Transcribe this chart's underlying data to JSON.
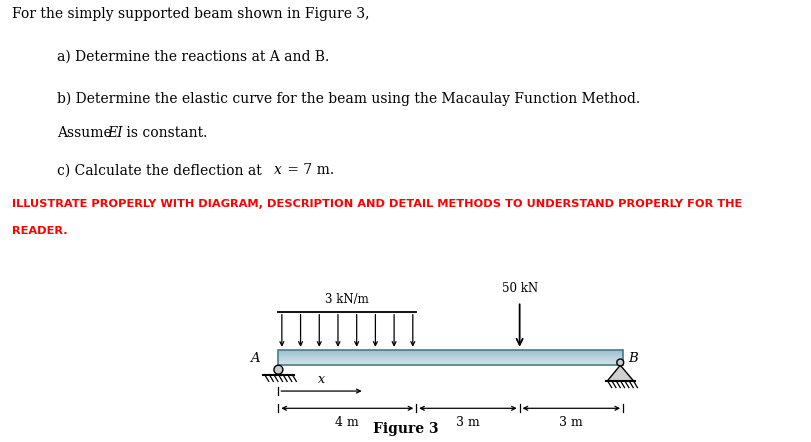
{
  "title_text": "For the simply supported beam shown in Figure 3,",
  "item_a": "a) Determine the reactions at A and B.",
  "item_b1": "b) Determine the elastic curve for the beam using the Macaulay Function Method.",
  "item_b2_pre": "Assume ",
  "item_b2_italic": "EI",
  "item_b2_post": " is constant.",
  "item_c_pre": "c) Calculate the deflection at ",
  "item_c_italic": "x",
  "item_c_post": " = 7 m.",
  "red_text1": "ILLUSTRATE PROPERLY WITH DIAGRAM, DESCRIPTION AND DETAIL METHODS TO UNDERSTAND PROPERLY FOR THE",
  "red_text2": "READER.",
  "figure_label": "Figure 3",
  "dist_load_label": "3 kN/m",
  "point_load_label": "50 kN",
  "dim_x_label": "x",
  "dim_4m": "4 m",
  "dim_3m1": "3 m",
  "dim_3m2": "3 m",
  "label_A": "A",
  "label_B": "B",
  "beam_color_top": "#b8d8e8",
  "beam_color_bot": "#8bbcd8",
  "beam_color_mid": "#a8cfe6",
  "beam_edge": "#507a8a",
  "background_color": "#ffffff"
}
